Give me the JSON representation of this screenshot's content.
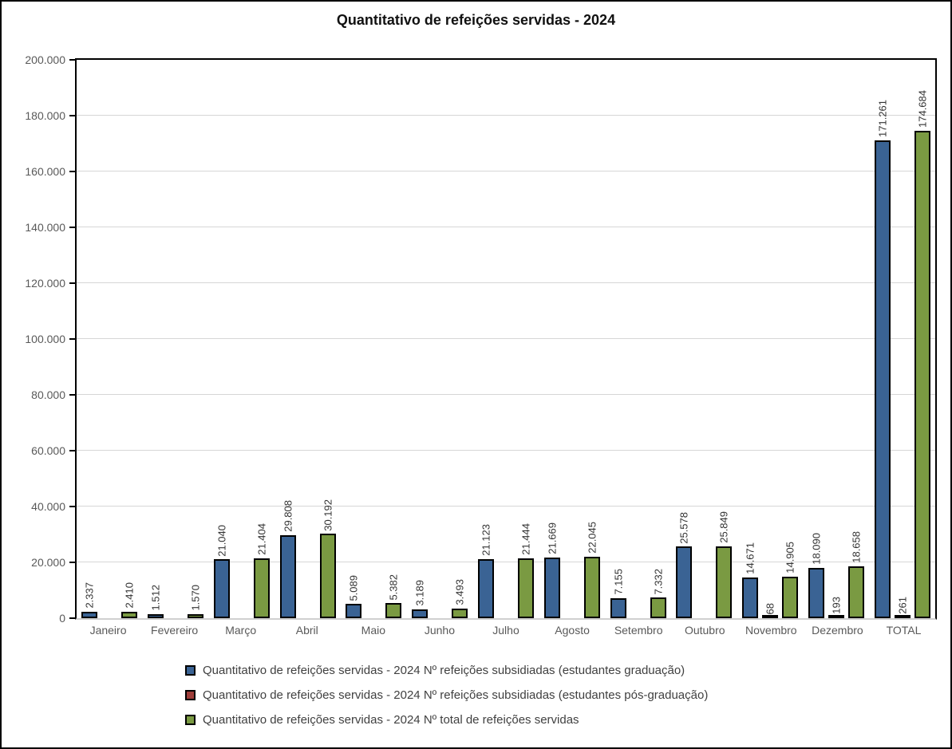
{
  "frame": {
    "background": "#ffffff",
    "border_color": "#000000"
  },
  "chart_data": {
    "type": "bar",
    "title": "Quantitativo de refeições servidas - 2024",
    "categories": [
      "Janeiro",
      "Fevereiro",
      "Março",
      "Abril",
      "Maio",
      "Junho",
      "Julho",
      "Agosto",
      "Setembro",
      "Outubro",
      "Novembro",
      "Dezembro",
      "TOTAL"
    ],
    "series": [
      {
        "key": "graduacao",
        "name": "Quantitativo de refeições servidas - 2024 Nº refeições subsidiadas (estudantes graduação)",
        "color": "#3A6394",
        "values": [
          2337,
          1512,
          21040,
          29808,
          5089,
          3189,
          21123,
          21669,
          7155,
          25578,
          14671,
          18090,
          171261
        ]
      },
      {
        "key": "pos-graduacao",
        "name": "Quantitativo de refeições servidas - 2024 Nº refeições subsidiadas (estudantes pós-graduação)",
        "color": "#9E3D39",
        "values": [
          0,
          0,
          0,
          0,
          0,
          0,
          0,
          0,
          0,
          0,
          68,
          193,
          261
        ]
      },
      {
        "key": "total",
        "name": "Quantitativo de refeições servidas - 2024 Nº total de refeições servidas",
        "color": "#7A9A42",
        "values": [
          2410,
          1570,
          21404,
          30192,
          5382,
          3493,
          21444,
          22045,
          7332,
          25849,
          14905,
          18658,
          174684
        ]
      }
    ],
    "ylim": [
      0,
      200000
    ],
    "ytick_step": 20000,
    "ytick_labels": [
      "0",
      "20.000",
      "40.000",
      "60.000",
      "80.000",
      "100.000",
      "120.000",
      "140.000",
      "160.000",
      "180.000",
      "200.000"
    ],
    "grid": true,
    "legend_position": "bottom-left",
    "bar_border_color": "#000000",
    "gridline_color": "#d6d6d6",
    "axis_label_color": "#595959",
    "data_label_color": "#333333",
    "number_format": "thousands-dot"
  }
}
